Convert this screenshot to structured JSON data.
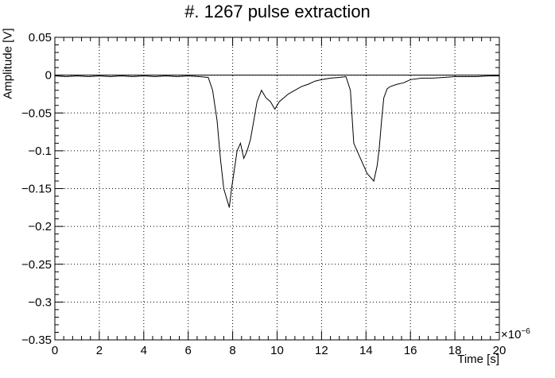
{
  "chart_data": {
    "type": "line",
    "title": "#. 1267 pulse extraction",
    "xlabel": "Time [s]",
    "ylabel": "Amplitude [V]",
    "x_exponent_label": "×10",
    "x_exponent_power": "−6",
    "xlim": [
      0,
      20
    ],
    "ylim": [
      -0.35,
      0.05
    ],
    "grid": true,
    "x_ticks": [
      0,
      2,
      4,
      6,
      8,
      10,
      12,
      14,
      16,
      18,
      20
    ],
    "x_tick_labels": [
      "0",
      "2",
      "4",
      "6",
      "8",
      "10",
      "12",
      "14",
      "16",
      "18",
      "20"
    ],
    "y_ticks": [
      0.05,
      0,
      -0.05,
      -0.1,
      -0.15,
      -0.2,
      -0.25,
      -0.3,
      -0.35
    ],
    "y_tick_labels": [
      "0.05",
      "0",
      "−0.05",
      "−0.1",
      "−0.15",
      "−0.2",
      "−0.25",
      "−0.3",
      "−0.35"
    ],
    "baseline": 0,
    "series": [
      {
        "x": [
          0,
          0.5,
          1,
          1.5,
          2,
          2.5,
          3,
          3.5,
          4,
          4.5,
          5,
          5.5,
          6,
          6.5,
          6.9,
          7.1,
          7.3,
          7.45,
          7.6,
          7.75,
          7.85,
          7.95,
          8.05,
          8.2,
          8.35,
          8.5,
          8.65,
          8.8,
          8.95,
          9.1,
          9.3,
          9.5,
          9.7,
          9.9,
          10.1,
          10.3,
          10.5,
          10.8,
          11.1,
          11.4,
          11.7,
          12,
          12.4,
          12.8,
          13.1,
          13.3,
          13.45,
          13.6,
          13.75,
          13.9,
          14.05,
          14.2,
          14.35,
          14.5,
          14.6,
          14.7,
          14.8,
          14.95,
          15.1,
          15.4,
          15.7,
          16,
          16.5,
          17,
          17.5,
          18,
          18.5,
          19,
          19.5,
          20
        ],
        "y": [
          -0.001,
          -0.002,
          -0.001,
          -0.002,
          -0.001,
          -0.002,
          -0.001,
          -0.002,
          -0.001,
          -0.002,
          -0.001,
          -0.002,
          -0.001,
          -0.002,
          -0.003,
          -0.02,
          -0.06,
          -0.11,
          -0.15,
          -0.165,
          -0.175,
          -0.15,
          -0.13,
          -0.1,
          -0.09,
          -0.11,
          -0.1,
          -0.085,
          -0.06,
          -0.035,
          -0.02,
          -0.03,
          -0.035,
          -0.045,
          -0.035,
          -0.03,
          -0.025,
          -0.02,
          -0.015,
          -0.012,
          -0.008,
          -0.006,
          -0.004,
          -0.003,
          -0.002,
          -0.02,
          -0.09,
          -0.1,
          -0.11,
          -0.12,
          -0.13,
          -0.135,
          -0.14,
          -0.12,
          -0.095,
          -0.06,
          -0.03,
          -0.018,
          -0.015,
          -0.012,
          -0.01,
          -0.006,
          -0.004,
          -0.004,
          -0.003,
          -0.002,
          -0.002,
          -0.002,
          -0.001,
          -0.001
        ]
      }
    ]
  }
}
